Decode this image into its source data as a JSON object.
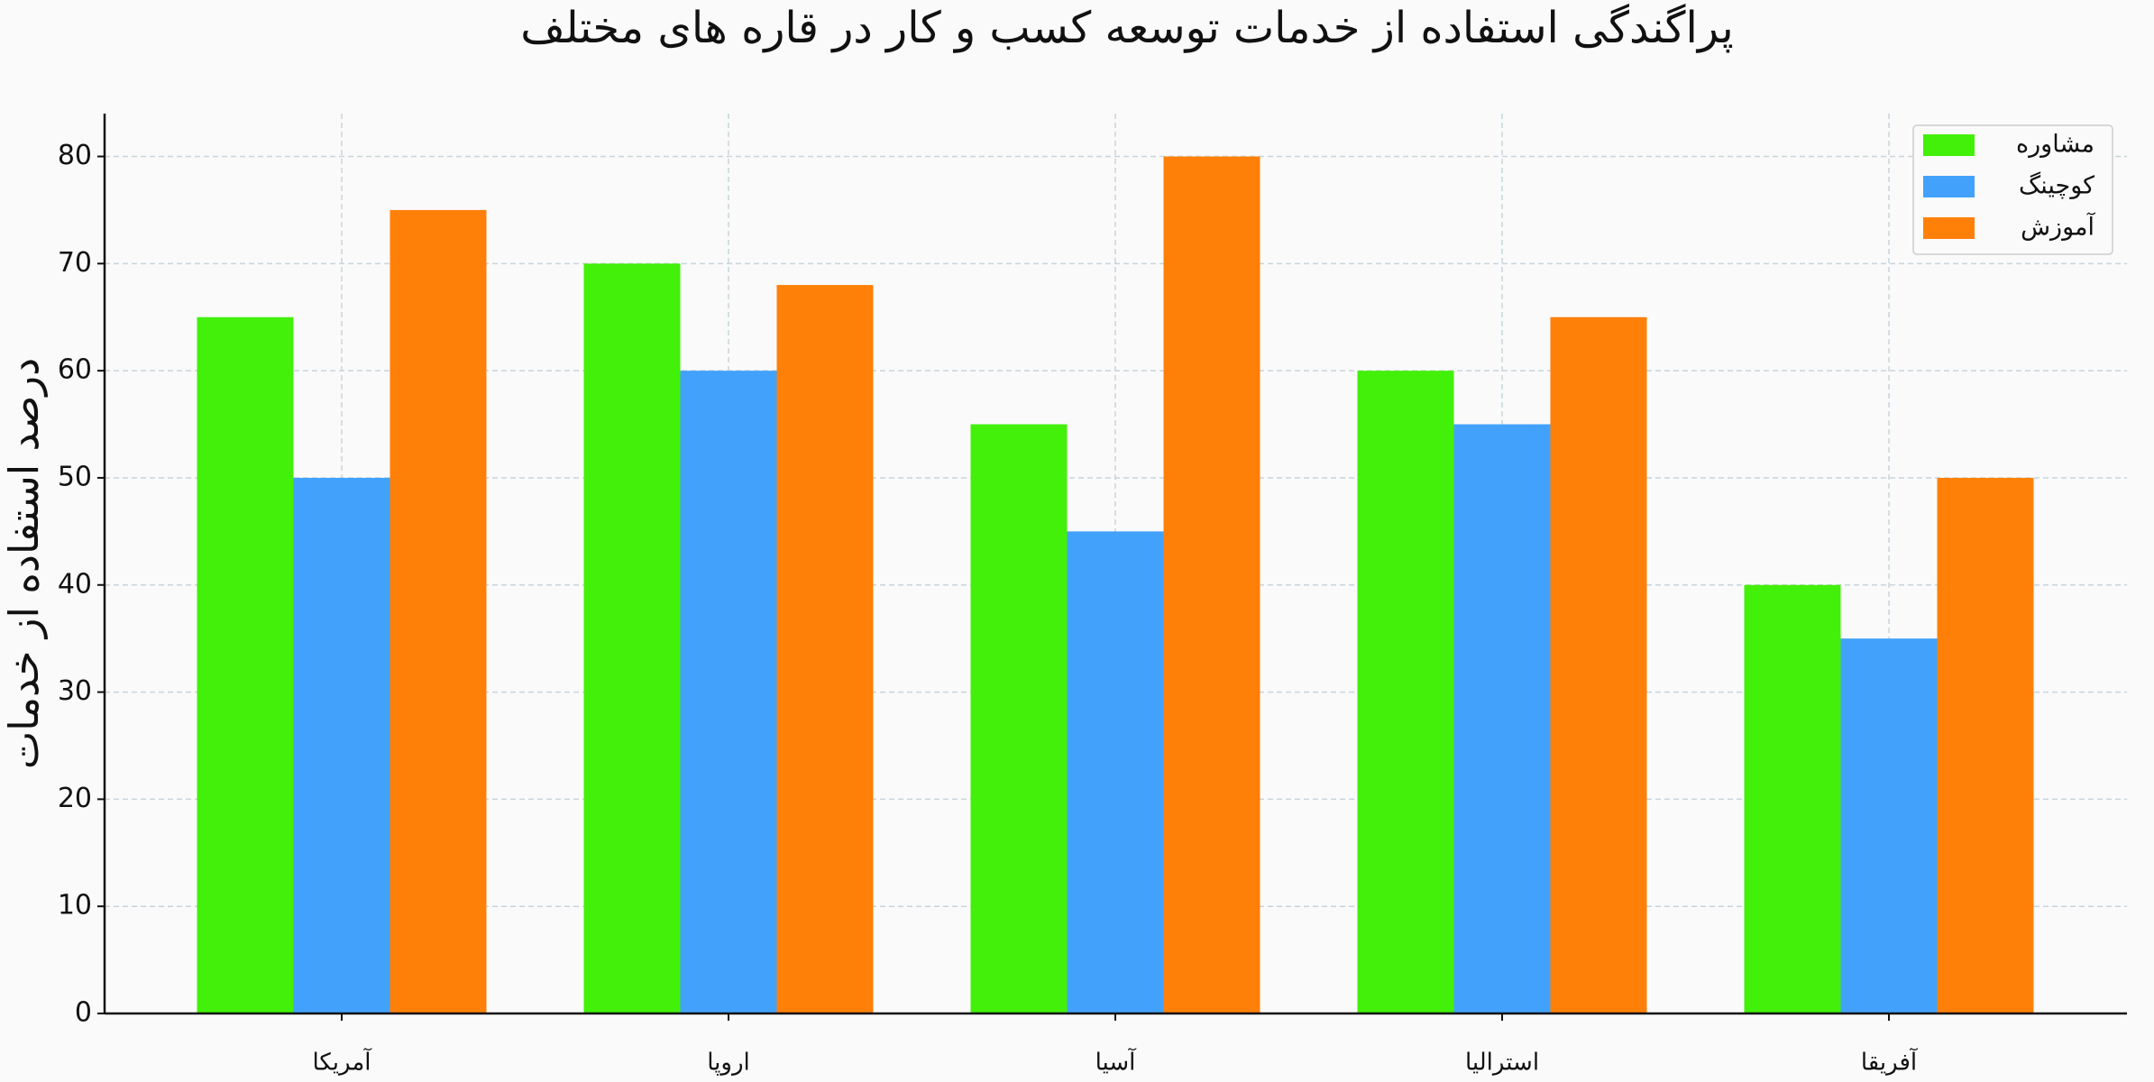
{
  "chart_data": {
    "type": "bar",
    "title": "پراگندگی استفاده از خدمات توسعه کسب و کار در قاره های مختلف",
    "y_label": "درصد استفاده از خدمات",
    "categories": [
      "آمریکا",
      "اروپا",
      "آسیا",
      "استرالیا",
      "آفریقا"
    ],
    "series": [
      {
        "name": "مشاوره",
        "color": "#42f00a",
        "values": [
          65,
          70,
          55,
          60,
          40
        ]
      },
      {
        "name": "کوچینگ",
        "color": "#42a2fb",
        "values": [
          50,
          60,
          45,
          55,
          35
        ]
      },
      {
        "name": "آموزش",
        "color": "#ff8008",
        "values": [
          75,
          68,
          80,
          65,
          50
        ]
      }
    ],
    "ylim": [
      0,
      84
    ],
    "yticks": [
      0,
      10,
      20,
      30,
      40,
      50,
      60,
      70,
      80
    ],
    "grid": true,
    "legend": "upper right"
  }
}
